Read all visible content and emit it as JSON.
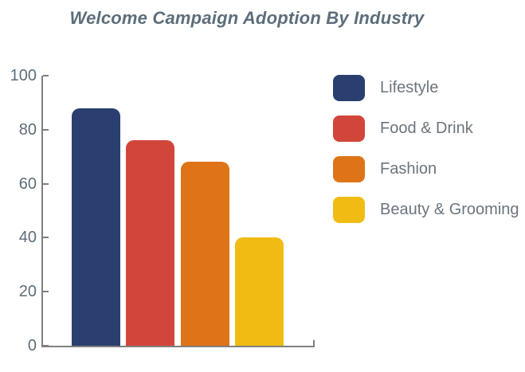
{
  "title": "Welcome Campaign Adoption By Industry",
  "chart_data": {
    "type": "bar",
    "title": "Welcome Campaign Adoption By Industry",
    "categories": [
      "Lifestyle",
      "Food & Drink",
      "Fashion",
      "Beauty & Grooming"
    ],
    "values": [
      88,
      76,
      68,
      40
    ],
    "colors": [
      "#2a3f6f",
      "#d2453a",
      "#de7318",
      "#f0bc13"
    ],
    "xlabel": "",
    "ylabel": "",
    "ylim": [
      0,
      100
    ],
    "yticks": [
      0,
      20,
      40,
      60,
      80,
      100
    ],
    "grid": false,
    "legend_position": "right",
    "axis_color": "#7f7f7f",
    "title_color": "#5d6d7a",
    "tick_label_color": "#5f6d79",
    "legend_text_color": "#6b747d",
    "background_color": "#ffffff"
  }
}
